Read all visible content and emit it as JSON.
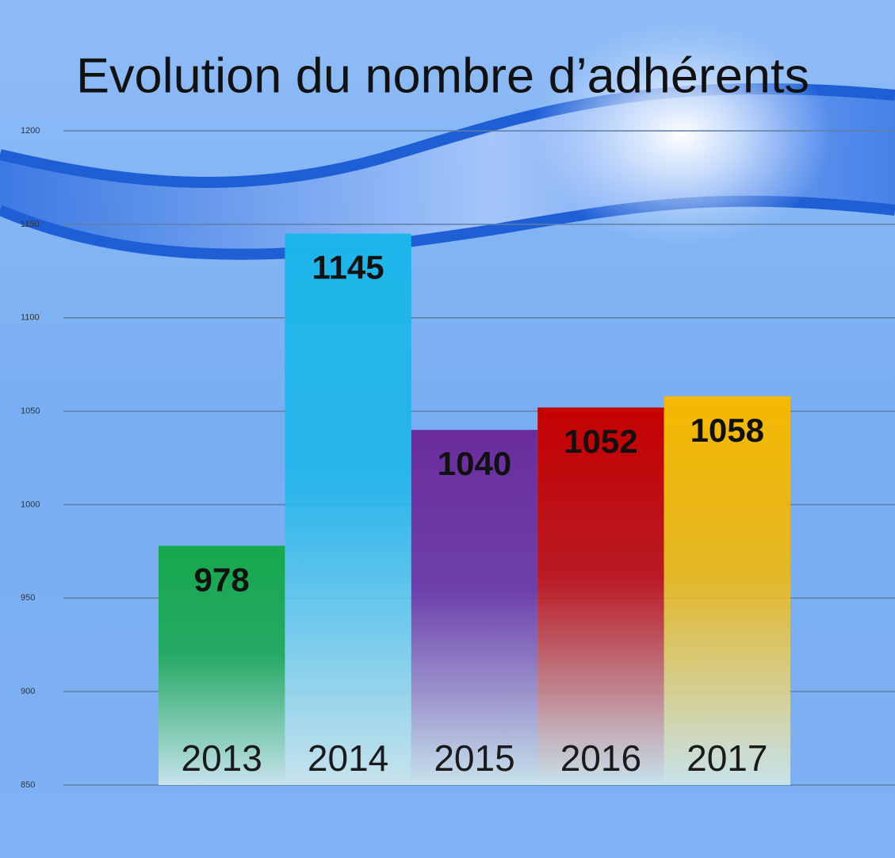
{
  "chart_data": {
    "type": "bar",
    "title": "Evolution du nombre d’adhérents",
    "categories": [
      "2013",
      "2014",
      "2015",
      "2016",
      "2017"
    ],
    "values": [
      978,
      1145,
      1040,
      1052,
      1058
    ],
    "colors": [
      "#16a84c",
      "#1cb6ea",
      "#6b2c9e",
      "#c40000",
      "#f6b800"
    ],
    "ylim": [
      850,
      1200
    ],
    "yticks": [
      850,
      900,
      950,
      1000,
      1050,
      1100,
      1150,
      1200
    ],
    "grid": true
  }
}
